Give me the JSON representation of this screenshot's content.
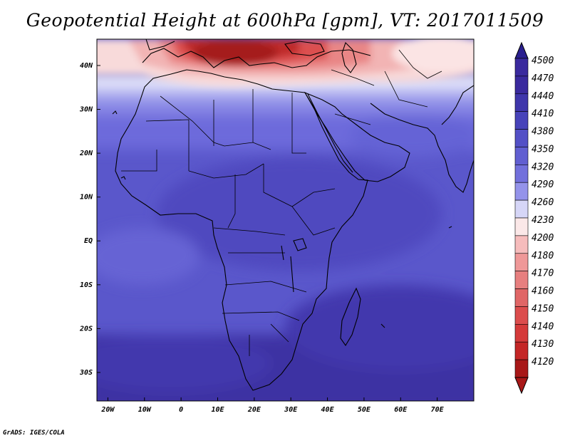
{
  "title": "Geopotential Height at 600hPa [gpm], VT: 2017011509",
  "footer": "GrADS: IGES/COLA",
  "map": {
    "lon_range": [
      -23,
      80
    ],
    "lat_range": [
      -36.5,
      46
    ],
    "lon_ticks": [
      {
        "value": -20,
        "label": "20W"
      },
      {
        "value": -10,
        "label": "10W"
      },
      {
        "value": 0,
        "label": "0"
      },
      {
        "value": 10,
        "label": "10E"
      },
      {
        "value": 20,
        "label": "20E"
      },
      {
        "value": 30,
        "label": "30E"
      },
      {
        "value": 40,
        "label": "40E"
      },
      {
        "value": 50,
        "label": "50E"
      },
      {
        "value": 60,
        "label": "60E"
      },
      {
        "value": 70,
        "label": "70E"
      }
    ],
    "lat_ticks": [
      {
        "value": 40,
        "label": "40N"
      },
      {
        "value": 30,
        "label": "30N"
      },
      {
        "value": 20,
        "label": "20N"
      },
      {
        "value": 10,
        "label": "10N"
      },
      {
        "value": 0,
        "label": "EQ"
      },
      {
        "value": -10,
        "label": "10S"
      },
      {
        "value": -20,
        "label": "20S"
      },
      {
        "value": -30,
        "label": "30S"
      }
    ]
  },
  "colorbar": {
    "levels": [
      {
        "label": "4500",
        "color": "#3a2a9e"
      },
      {
        "label": "4470",
        "color": "#3a2a9e"
      },
      {
        "label": "4440",
        "color": "#3f36ab"
      },
      {
        "label": "4410",
        "color": "#4743ba"
      },
      {
        "label": "4380",
        "color": "#5350c6"
      },
      {
        "label": "4350",
        "color": "#615fd1"
      },
      {
        "label": "4320",
        "color": "#7270dc"
      },
      {
        "label": "4290",
        "color": "#9493ea"
      },
      {
        "label": "4260",
        "color": "#d6d6f7"
      },
      {
        "label": "4230",
        "color": "#fbe8e8"
      },
      {
        "label": "4200",
        "color": "#f6bcbc"
      },
      {
        "label": "4180",
        "color": "#ef9898"
      },
      {
        "label": "4170",
        "color": "#e77f7f"
      },
      {
        "label": "4160",
        "color": "#e06666"
      },
      {
        "label": "4150",
        "color": "#dc4d4d"
      },
      {
        "label": "4140",
        "color": "#d53a3a"
      },
      {
        "label": "4130",
        "color": "#c42626"
      },
      {
        "label": "4120",
        "color": "#a81818"
      }
    ],
    "top_arrow_color": "#2a1f8f",
    "bottom_arrow_color": "#a81818"
  }
}
